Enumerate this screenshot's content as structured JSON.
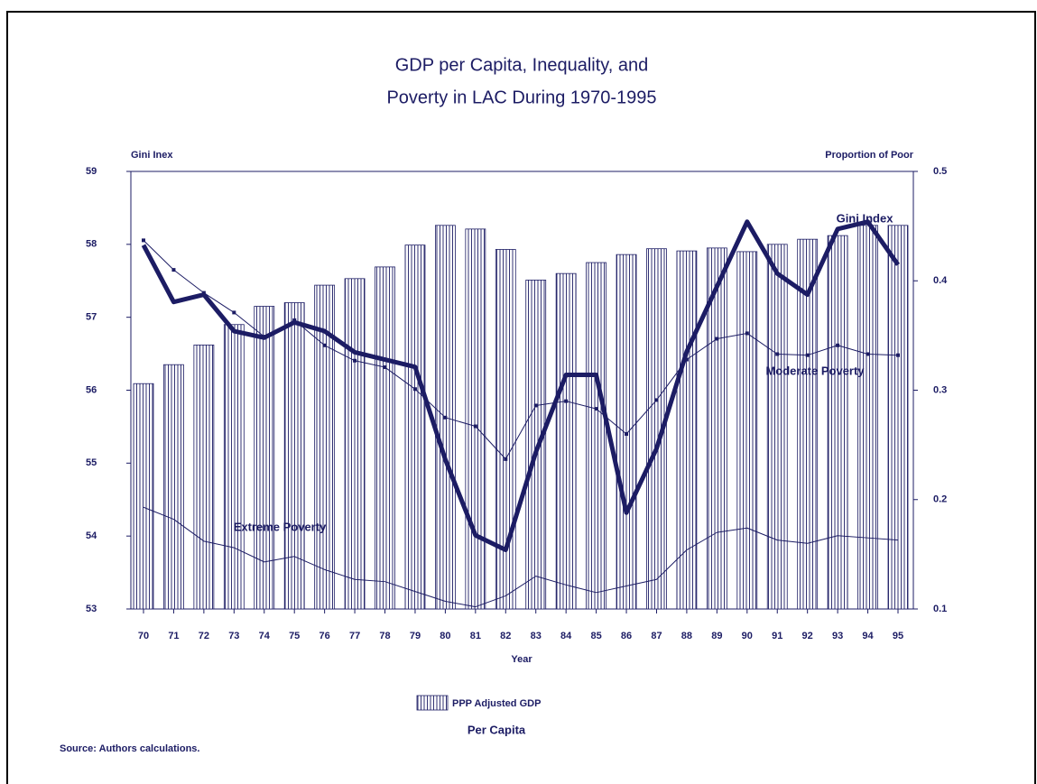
{
  "chart_data": {
    "type": "bar_line",
    "title": [
      "GDP per Capita, Inequality, and",
      "Poverty in LAC During 1970-1995"
    ],
    "ylabel": "Gini Inex",
    "y2label": "Proportion of Poor",
    "xlabel": "Year",
    "legend_subtitle": "Per Capita",
    "source": "Source: Authors calculations.",
    "categories": [
      "70",
      "71",
      "72",
      "73",
      "74",
      "75",
      "76",
      "77",
      "78",
      "79",
      "80",
      "81",
      "82",
      "83",
      "84",
      "85",
      "86",
      "87",
      "88",
      "89",
      "90",
      "91",
      "92",
      "93",
      "94",
      "95"
    ],
    "ylim": [
      53,
      59
    ],
    "yticks": [
      53,
      54,
      55,
      56,
      57,
      58,
      59
    ],
    "y2lim": [
      0.1,
      0.5
    ],
    "y2ticks": [
      0.1,
      0.2,
      0.3,
      0.4,
      0.5
    ],
    "series": [
      {
        "name": "PPP Adjusted GDP",
        "kind": "bar",
        "color": "#1c1c64",
        "values": [
          56.09,
          56.35,
          56.62,
          56.9,
          57.15,
          57.2,
          57.44,
          57.53,
          57.69,
          57.99,
          58.26,
          58.21,
          57.93,
          57.51,
          57.6,
          57.75,
          57.86,
          57.94,
          57.91,
          57.95,
          57.9,
          58.0,
          58.07,
          58.12,
          58.26,
          58.26
        ]
      },
      {
        "name": "Gini Index",
        "kind": "line",
        "color": "#1c1c64",
        "values": [
          57.99,
          57.21,
          57.31,
          56.81,
          56.72,
          56.93,
          56.81,
          56.52,
          56.42,
          56.32,
          55.05,
          54.01,
          53.81,
          55.15,
          56.21,
          56.21,
          54.32,
          55.2,
          56.53,
          57.42,
          58.31,
          57.6,
          57.31,
          58.21,
          58.31,
          57.72
        ]
      },
      {
        "name": "Moderate Poverty",
        "kind": "line",
        "axis": "y2",
        "color": "#1c1c64",
        "markers": true,
        "values": [
          0.437,
          0.41,
          0.389,
          0.371,
          0.349,
          0.364,
          0.341,
          0.327,
          0.321,
          0.301,
          0.275,
          0.267,
          0.237,
          0.286,
          0.29,
          0.283,
          0.26,
          0.291,
          0.328,
          0.347,
          0.352,
          0.333,
          0.332,
          0.341,
          0.333,
          0.332
        ]
      },
      {
        "name": "Extreme Poverty",
        "kind": "line",
        "axis": "y2",
        "color": "#1c1c64",
        "values": [
          0.193,
          0.182,
          0.162,
          0.156,
          0.143,
          0.148,
          0.136,
          0.127,
          0.125,
          0.116,
          0.107,
          0.102,
          0.112,
          0.13,
          0.122,
          0.115,
          0.121,
          0.127,
          0.154,
          0.17,
          0.174,
          0.163,
          0.16,
          0.167,
          0.165,
          0.163
        ]
      }
    ]
  }
}
